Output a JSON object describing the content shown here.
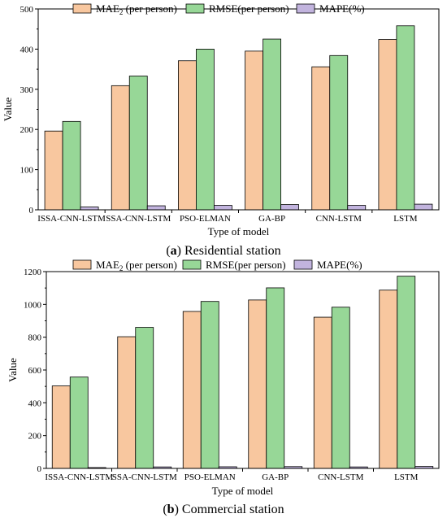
{
  "chart_data": [
    {
      "type": "bar",
      "caption_letter": "(a)",
      "caption_text": " Residential station",
      "xlabel": "Type of model",
      "ylabel": "Value",
      "ylim": [
        0,
        500
      ],
      "yticks": [
        0,
        100,
        200,
        300,
        400,
        500
      ],
      "grid": false,
      "legend_placement": "top",
      "categories": [
        "ISSA-CNN-LSTM",
        "SSA-CNN-LSTM",
        "PSO-ELMAN",
        "GA-BP",
        "CNN-LSTM",
        "LSTM"
      ],
      "series": [
        {
          "name": "MAE",
          "subscript": "2",
          "suffix": " (per person)",
          "color": "#F8C79F",
          "values": [
            196,
            309,
            371,
            395,
            356,
            424
          ]
        },
        {
          "name": "RMSE(per person)",
          "color": "#97D797",
          "values": [
            220,
            333,
            400,
            425,
            384,
            458
          ]
        },
        {
          "name": "MAPE(%)",
          "color": "#C2B4DE",
          "values": [
            7,
            10,
            11,
            13,
            11,
            14
          ]
        }
      ]
    },
    {
      "type": "bar",
      "caption_letter": "(b)",
      "caption_text": " Commercial station",
      "xlabel": "Type of model",
      "ylabel": "Value",
      "ylim": [
        0,
        1200
      ],
      "yticks": [
        0,
        200,
        400,
        600,
        800,
        1000,
        1200
      ],
      "grid": false,
      "legend_placement": "top",
      "categories": [
        "ISSA-CNN-LSTM",
        "SSA-CNN-LSTM",
        "PSO-ELMAN",
        "GA-BP",
        "CNN-LSTM",
        "LSTM"
      ],
      "series": [
        {
          "name": "MAE",
          "subscript": "2",
          "suffix": " (per person)",
          "color": "#F8C79F",
          "values": [
            503,
            803,
            957,
            1027,
            922,
            1087
          ]
        },
        {
          "name": "RMSE(per person)",
          "color": "#97D797",
          "values": [
            557,
            860,
            1018,
            1101,
            983,
            1172
          ]
        },
        {
          "name": "MAPE(%)",
          "color": "#C2B4DE",
          "values": [
            5,
            9,
            10,
            11,
            9,
            12
          ]
        }
      ]
    }
  ]
}
